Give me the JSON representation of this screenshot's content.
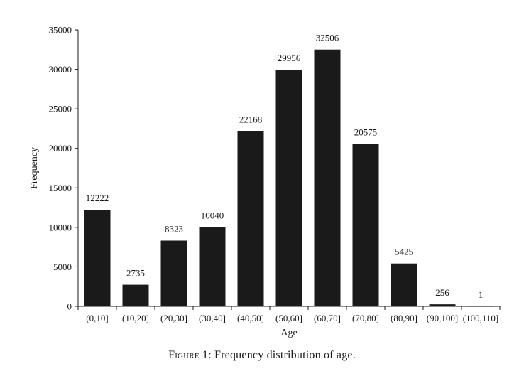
{
  "chart_data": {
    "type": "bar",
    "categories": [
      "(0,10]",
      "(10,20]",
      "(20,30]",
      "(30,40]",
      "(40,50]",
      "(50,60]",
      "(60,70]",
      "(70,80]",
      "(80,90]",
      "(90,100]",
      "(100,110]"
    ],
    "values": [
      12222,
      2735,
      8323,
      10040,
      22168,
      29956,
      32506,
      20575,
      5425,
      256,
      1
    ],
    "data_labels": [
      "12222",
      "2735",
      "8323",
      "10040",
      "22168",
      "29956",
      "32506",
      "20575",
      "5425",
      "256",
      "1"
    ],
    "xlabel": "Age",
    "ylabel": "Frequency",
    "ylim": [
      0,
      35000
    ],
    "yticks": [
      0,
      5000,
      10000,
      15000,
      20000,
      25000,
      30000,
      35000
    ],
    "ytick_labels": [
      "0",
      "5000",
      "10000",
      "15000",
      "20000",
      "25000",
      "30000",
      "35000"
    ],
    "grid": false,
    "legend": "none",
    "bar_color": "#1a1a1a",
    "axis_color": "#1a1a1a"
  },
  "caption": {
    "label": "Figure 1:",
    "text": " Frequency distribution of age."
  }
}
